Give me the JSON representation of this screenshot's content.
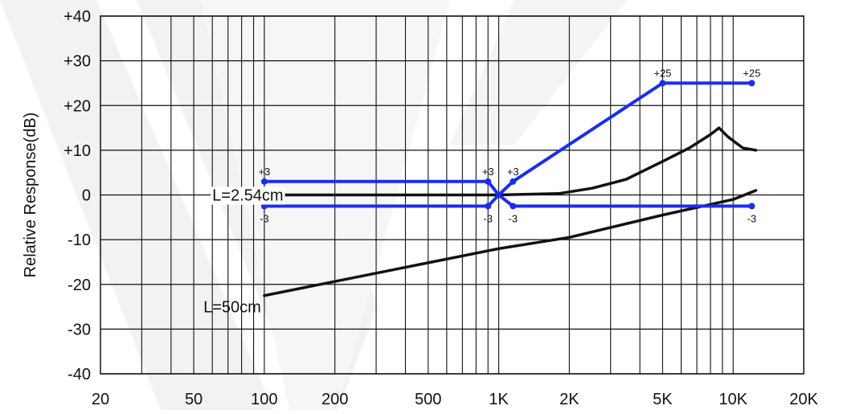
{
  "chart_data": {
    "type": "line",
    "title": "",
    "xlabel": "",
    "ylabel": "Relative Response(dB)",
    "x_scale": "log",
    "xlim": [
      20,
      20000
    ],
    "ylim": [
      -40,
      40
    ],
    "grid": true,
    "x_ticks": [
      {
        "value": 20,
        "label": "20"
      },
      {
        "value": 50,
        "label": "50"
      },
      {
        "value": 100,
        "label": "100"
      },
      {
        "value": 200,
        "label": "200"
      },
      {
        "value": 500,
        "label": "500"
      },
      {
        "value": 1000,
        "label": "1K"
      },
      {
        "value": 2000,
        "label": "2K"
      },
      {
        "value": 5000,
        "label": "5K"
      },
      {
        "value": 10000,
        "label": "10K"
      },
      {
        "value": 20000,
        "label": "20K"
      }
    ],
    "y_ticks": [
      {
        "value": 40,
        "label": "+40"
      },
      {
        "value": 30,
        "label": "+30"
      },
      {
        "value": 20,
        "label": "+20"
      },
      {
        "value": 10,
        "label": "+10"
      },
      {
        "value": 0,
        "label": "0"
      },
      {
        "value": -10,
        "label": "-10"
      },
      {
        "value": -20,
        "label": "-20"
      },
      {
        "value": -30,
        "label": "-30"
      },
      {
        "value": -40,
        "label": "-40"
      }
    ],
    "colors": {
      "tolerance": "#1a2ef0",
      "response": "#111111",
      "grid": "#111111"
    },
    "series": [
      {
        "label": "L=2.54cm",
        "color": "#111111",
        "points": [
          [
            100,
            0
          ],
          [
            300,
            0
          ],
          [
            700,
            0
          ],
          [
            1000,
            0
          ],
          [
            1800,
            0.3
          ],
          [
            2500,
            1.5
          ],
          [
            3500,
            3.5
          ],
          [
            5000,
            7.5
          ],
          [
            6500,
            10.5
          ],
          [
            8000,
            13.5
          ],
          [
            8700,
            15
          ],
          [
            9500,
            13
          ],
          [
            11000,
            10.5
          ],
          [
            12500,
            10
          ]
        ]
      },
      {
        "label": "L=50cm",
        "color": "#111111",
        "points": [
          [
            100,
            -22.5
          ],
          [
            1000,
            -12
          ],
          [
            2000,
            -9.5
          ],
          [
            5000,
            -4.5
          ],
          [
            10000,
            -1
          ],
          [
            12500,
            1
          ]
        ]
      },
      {
        "label": "",
        "color": "#1a2ef0",
        "points": [
          [
            100,
            3
          ],
          [
            900,
            3
          ],
          [
            1000,
            0
          ],
          [
            1150,
            3
          ],
          [
            5000,
            25
          ],
          [
            12000,
            25
          ]
        ]
      },
      {
        "label": "",
        "color": "#1a2ef0",
        "points": [
          [
            100,
            -2.5
          ],
          [
            900,
            -2.5
          ],
          [
            1000,
            0
          ],
          [
            1150,
            -2.5
          ],
          [
            12000,
            -2.5
          ]
        ]
      }
    ],
    "markers": [
      {
        "x": 100,
        "y": 3
      },
      {
        "x": 900,
        "y": 3
      },
      {
        "x": 1150,
        "y": 3
      },
      {
        "x": 5000,
        "y": 25
      },
      {
        "x": 12000,
        "y": 25
      },
      {
        "x": 100,
        "y": -2.5
      },
      {
        "x": 900,
        "y": -2.5
      },
      {
        "x": 1150,
        "y": -2.5
      },
      {
        "x": 12000,
        "y": -2.5
      }
    ],
    "point_labels": [
      {
        "text": "+3",
        "x": 100,
        "y": 3
      },
      {
        "text": "-3",
        "x": 100,
        "y": -2.5
      },
      {
        "text": "+3",
        "x": 900,
        "y": 3
      },
      {
        "text": "-3",
        "x": 900,
        "y": -2.5
      },
      {
        "text": "+3",
        "x": 1150,
        "y": 3
      },
      {
        "text": "-3",
        "x": 1150,
        "y": -2.5
      },
      {
        "text": "+25",
        "x": 5000,
        "y": 25
      },
      {
        "text": "+25",
        "x": 12000,
        "y": 25
      },
      {
        "text": "-3",
        "x": 12000,
        "y": -2.5
      }
    ],
    "annotations": [
      {
        "text": "L=2.54cm",
        "x": 60,
        "y": 0
      },
      {
        "text": "L=50cm",
        "x": 55,
        "y": -25
      }
    ]
  }
}
